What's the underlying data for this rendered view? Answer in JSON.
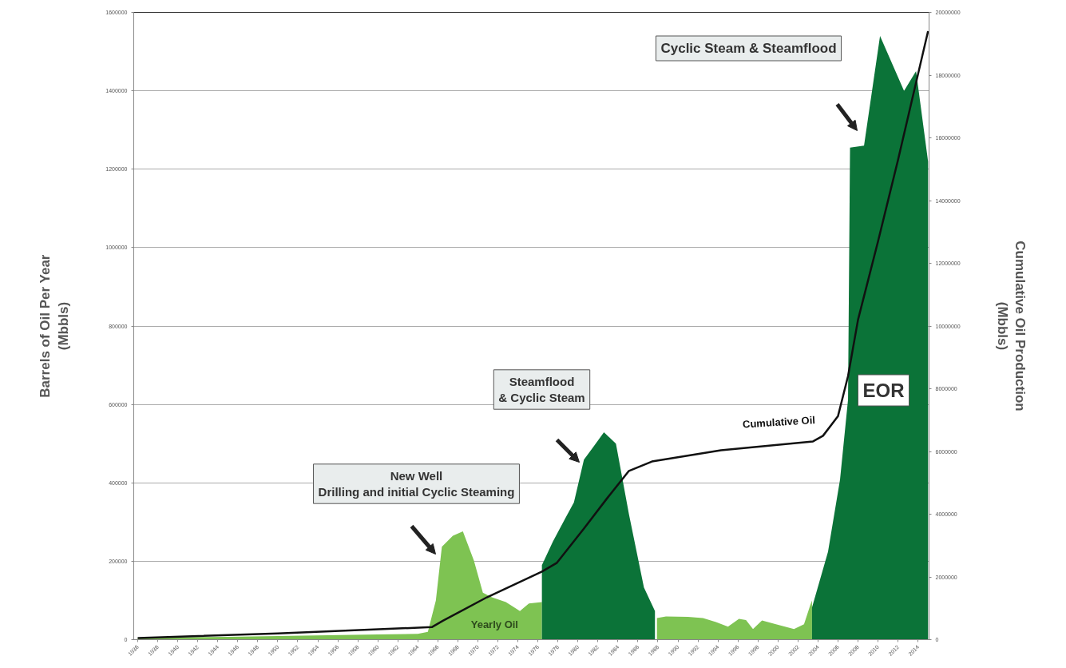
{
  "chart_data": {
    "type": "area",
    "xlabel": null,
    "ylabel": "Barrels of Oil Per Year\n(Mbbls)",
    "y2label": "Cumulative Oil Production\n(Mbbls)",
    "xlim": [
      1935.6,
      2015.1
    ],
    "xticks": [
      1936,
      1938,
      1940,
      1942,
      1944,
      1946,
      1948,
      1950,
      1952,
      1954,
      1956,
      1958,
      1960,
      1962,
      1964,
      1966,
      1968,
      1970,
      1972,
      1974,
      1976,
      1978,
      1980,
      1982,
      1984,
      1986,
      1988,
      1990,
      1992,
      1994,
      1996,
      1998,
      2000,
      2002,
      2004,
      2006,
      2008,
      2010,
      2012,
      2014
    ],
    "ylim": [
      0,
      1600000
    ],
    "yticks": [
      0,
      200000,
      400000,
      600000,
      800000,
      1000000,
      1200000,
      1400000,
      1600000
    ],
    "y2lim": [
      0,
      20000000
    ],
    "y2ticks": [
      0,
      2000000,
      4000000,
      6000000,
      8000000,
      10000000,
      12000000,
      14000000,
      16000000,
      18000000,
      20000000
    ],
    "grid": "y",
    "series": [
      {
        "name": "Yearly Oil",
        "color": "#7ec352",
        "x": [
          1936,
          1940,
          1945,
          1950,
          1955,
          1960,
          1964,
          1965,
          1965.8,
          1966.4,
          1967.5,
          1968.5,
          1969.6,
          1970.5,
          1971.4,
          1972.8,
          1974.2,
          1975.1,
          1976.4,
          1982,
          1987.9,
          1988.8,
          1991,
          1992.5,
          1993.8,
          1995,
          1996.1,
          1996.8,
          1997.5,
          1998.4,
          1999.8,
          2001.6,
          2002.6,
          2003.2,
          2003.4
        ],
        "values": [
          5000,
          6000,
          7000,
          9000,
          11000,
          13000,
          15000,
          20000,
          100000,
          237000,
          265000,
          276000,
          202000,
          120000,
          108000,
          96000,
          73000,
          92000,
          96000,
          null,
          55000,
          59000,
          58000,
          55000,
          45000,
          33000,
          53000,
          50000,
          27000,
          49000,
          39000,
          27000,
          39000,
          86000,
          100000
        ]
      },
      {
        "color": "#0b7338",
        "x": [
          1976.4,
          1977.5,
          1978.7,
          1979.6,
          1980.6,
          1981.5,
          1982.6,
          1983.8,
          1985.1,
          1986.6,
          1987.7,
          1995,
          2003.4,
          2005,
          2006.2,
          2007,
          2007.2,
          2008.6,
          2010.2,
          2012.6,
          2013.8,
          2015
        ],
        "values": [
          190000,
          250000,
          308000,
          350000,
          459000,
          490000,
          529000,
          500000,
          320000,
          133000,
          73000,
          null,
          82000,
          224000,
          408000,
          612000,
          1255000,
          1260000,
          1540000,
          1400000,
          1450000,
          1220000
        ]
      },
      {
        "name": "Cumulative Oil",
        "type": "line",
        "axis": "y2",
        "color": "#111111",
        "x": [
          1936,
          1950,
          1965.4,
          1966.5,
          1970.9,
          1976.4,
          1977.9,
          1980.6,
          1982.9,
          1985.1,
          1987.4,
          1994.3,
          2003.5,
          2004.5,
          2006,
          2007,
          2008,
          2010,
          2012,
          2015
        ],
        "values": [
          50000,
          200000,
          400000,
          600000,
          1350000,
          2170000,
          2450000,
          3540000,
          4500000,
          5380000,
          5680000,
          6040000,
          6320000,
          6500000,
          7130000,
          8400000,
          10200000,
          12700000,
          15300000,
          19400000
        ]
      }
    ],
    "annotations": [
      "New Well\nDrilling and initial Cyclic Steaming",
      "Steamflood\n& Cyclic Steam",
      "Cyclic Steam & Steamflood",
      "EOR"
    ]
  }
}
